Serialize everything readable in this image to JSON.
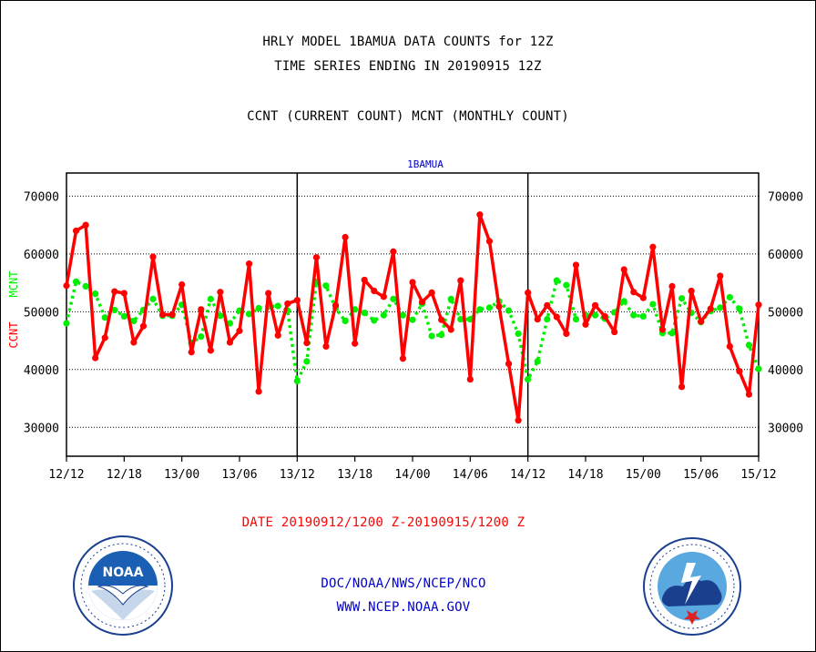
{
  "header": {
    "title_line1": "HRLY MODEL 1BAMUA DATA COUNTS for 12Z",
    "title_line2": "TIME SERIES ENDING IN 20190915 12Z",
    "subtitle": "CCNT (CURRENT COUNT) MCNT (MONTHLY COUNT)"
  },
  "footer": {
    "date_range": "DATE 20190912/1200 Z-20190915/1200 Z",
    "org": "DOC/NOAA/NWS/NCEP/NCO",
    "url": "WWW.NCEP.NOAA.GOV"
  },
  "colors": {
    "ccnt": "#ff0000",
    "mcnt": "#00ee00",
    "axis": "#000000",
    "plot_label": "#0000cc",
    "footer_text": "#0000cc",
    "date_text": "#ff0000"
  },
  "logos": {
    "left": {
      "icon": "noaa-logo",
      "text": "NOAA"
    },
    "right": {
      "icon": "nws-logo"
    }
  },
  "chart_data": {
    "type": "line",
    "plot_label": "1BAMUA",
    "ylabel_left": [
      "CCNT",
      "MCNT"
    ],
    "ylim": [
      25000,
      74000
    ],
    "yticks": [
      30000,
      40000,
      50000,
      60000,
      70000
    ],
    "ytick_labels": [
      "30000",
      "40000",
      "50000",
      "60000",
      "70000"
    ],
    "xlim": [
      0,
      72
    ],
    "xticks": [
      0,
      6,
      12,
      18,
      24,
      30,
      36,
      42,
      48,
      54,
      60,
      66,
      72
    ],
    "xtick_labels": [
      "12/12",
      "12/18",
      "13/00",
      "13/06",
      "13/12",
      "13/18",
      "14/00",
      "14/06",
      "14/12",
      "14/18",
      "15/00",
      "15/06",
      "15/12"
    ],
    "day_dividers": [
      24,
      48
    ],
    "grid": true,
    "series": [
      {
        "name": "CCNT",
        "values": [
          54500,
          64000,
          65000,
          42000,
          45500,
          53500,
          53200,
          44700,
          47500,
          59500,
          49500,
          49500,
          54700,
          43000,
          50400,
          43300,
          53400,
          44700,
          46700,
          58300,
          36200,
          53200,
          45900,
          51400,
          52000,
          44600,
          59400,
          44000,
          51100,
          62900,
          44500,
          55500,
          53600,
          52600,
          60400,
          41900,
          55100,
          51700,
          53300,
          48600,
          46900,
          55400,
          38300,
          66800,
          62200,
          50900,
          41000,
          31200,
          53300,
          48700,
          51100,
          49100,
          46200,
          58100,
          47800,
          51100,
          49200,
          46500,
          57300,
          53400,
          52400,
          61200,
          46900,
          54400,
          37000,
          53600,
          48300,
          50500,
          56200,
          44000,
          39700,
          35700,
          51200
        ]
      },
      {
        "name": "MCNT",
        "values": [
          48000,
          55200,
          54400,
          53100,
          49000,
          50300,
          49200,
          48400,
          50300,
          52200,
          49300,
          49300,
          51200,
          44600,
          45700,
          52200,
          49300,
          48000,
          50200,
          49600,
          50600,
          50900,
          51000,
          50200,
          38000,
          41400,
          55200,
          54500,
          50600,
          48400,
          50400,
          49800,
          48500,
          49400,
          52200,
          49400,
          48600,
          51400,
          45800,
          46000,
          52200,
          48700,
          48700,
          50400,
          50700,
          51800,
          50200,
          46200,
          38300,
          41400,
          48700,
          55400,
          54600,
          48700,
          49400,
          49400,
          48800,
          49900,
          51800,
          49400,
          49200,
          51300,
          46300,
          46300,
          52300,
          49800,
          48200,
          50100,
          50700,
          52500,
          50500,
          44200,
          40100
        ]
      }
    ]
  }
}
